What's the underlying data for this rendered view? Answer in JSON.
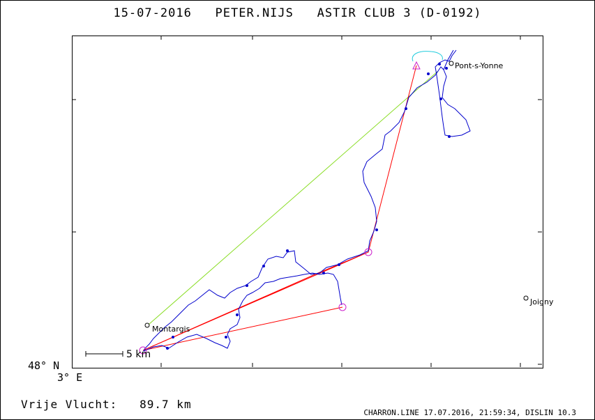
{
  "header": {
    "date": "15-07-2016",
    "pilot": "PETER.NIJS",
    "glider": "ASTIR CLUB 3 (D-0192)"
  },
  "axes": {
    "lat_label": "48° N",
    "lon_label": "3° E"
  },
  "towns": [
    {
      "name": "Pont-s-Yonne"
    },
    {
      "name": "Montargis"
    },
    {
      "name": "Joigny"
    }
  ],
  "scale": {
    "label": "5 km"
  },
  "result": {
    "label": "Vrije Vlucht:",
    "value": "89.7 km"
  },
  "footer": {
    "text": "CHARRON.LINE 17.07.2016, 21:59:34, DISLIN 10.3"
  },
  "colors": {
    "track": "#0000cc",
    "task": "#ff0000",
    "straight_line": "#88dd22",
    "turnpoint": "#cc22cc",
    "start_loop": "#22ccdd"
  }
}
